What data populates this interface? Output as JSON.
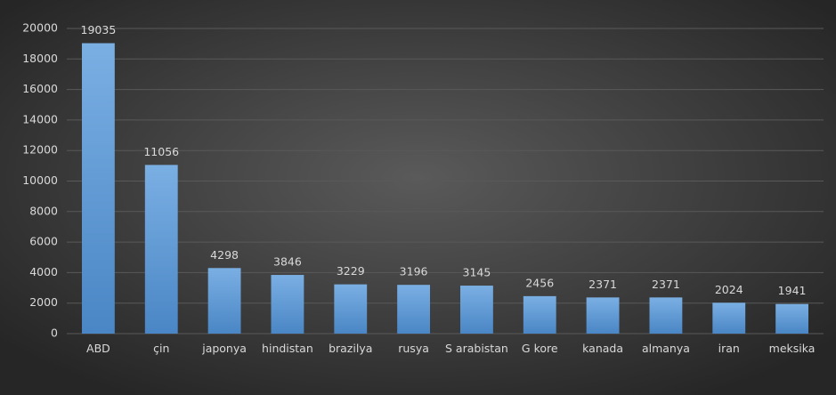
{
  "chart_data": {
    "type": "bar",
    "categories": [
      "ABD",
      "çin",
      "japonya",
      "hindistan",
      "brazilya",
      "rusya",
      "S arabistan",
      "G kore",
      "kanada",
      "almanya",
      "iran",
      "meksika"
    ],
    "values": [
      19035,
      11056,
      4298,
      3846,
      3229,
      3196,
      3145,
      2456,
      2371,
      2371,
      2024,
      1941
    ],
    "color": "#5b9bd5",
    "ylim": [
      0,
      20000
    ],
    "yticks": [
      0,
      2000,
      4000,
      6000,
      8000,
      10000,
      12000,
      14000,
      16000,
      18000,
      20000
    ],
    "grid": true,
    "data_labels": true
  }
}
